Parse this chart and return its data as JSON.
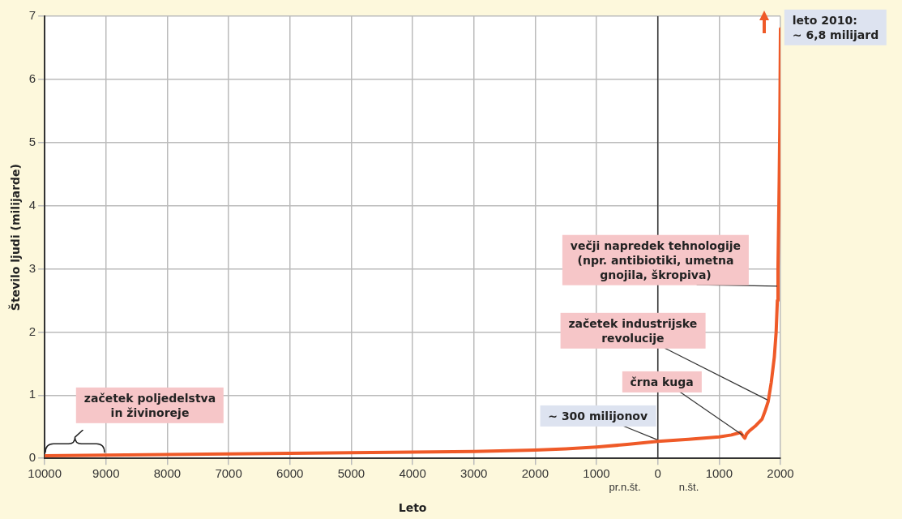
{
  "chart_data": {
    "type": "line",
    "xlabel": "Leto",
    "ylabel": "Število ljudi (milijarde)",
    "xlim": [
      -10000,
      2000
    ],
    "ylim": [
      0,
      7
    ],
    "xticks": [
      {
        "value": -10000,
        "label": "10000"
      },
      {
        "value": -9000,
        "label": "9000"
      },
      {
        "value": -8000,
        "label": "8000"
      },
      {
        "value": -7000,
        "label": "7000"
      },
      {
        "value": -6000,
        "label": "6000"
      },
      {
        "value": -5000,
        "label": "5000"
      },
      {
        "value": -4000,
        "label": "4000"
      },
      {
        "value": -3000,
        "label": "3000"
      },
      {
        "value": -2000,
        "label": "2000"
      },
      {
        "value": -1000,
        "label": "1000"
      },
      0,
      1000,
      2000
    ],
    "yticks": [
      0,
      1,
      2,
      3,
      4,
      5,
      6,
      7
    ],
    "grid": true,
    "legend": false,
    "marker": "none",
    "line_style": "solid",
    "series": [
      {
        "color": "#ef5a28",
        "x": [
          -10000,
          -9000,
          -8000,
          -7000,
          -6000,
          -5000,
          -4000,
          -3000,
          -2000,
          -1500,
          -1000,
          -500,
          0,
          500,
          1000,
          1200,
          1350,
          1400,
          1420,
          1450,
          1500,
          1600,
          1700,
          1750,
          1800,
          1850,
          1900,
          1930,
          1950,
          1960,
          1970,
          1980,
          1990,
          2000
        ],
        "values": [
          0.04,
          0.05,
          0.06,
          0.07,
          0.08,
          0.09,
          0.1,
          0.11,
          0.13,
          0.15,
          0.18,
          0.22,
          0.27,
          0.3,
          0.34,
          0.37,
          0.41,
          0.34,
          0.32,
          0.39,
          0.44,
          0.52,
          0.62,
          0.75,
          0.9,
          1.2,
          1.6,
          2.0,
          2.5,
          3.0,
          3.7,
          4.4,
          5.3,
          6.8
        ]
      }
    ],
    "ref_lines": [
      {
        "axis": "x",
        "value": 0,
        "color": "#333333"
      }
    ],
    "annotations": [
      "začetek poljedelstva\nin živinoreje",
      {
        "text": "~ 300 milijonov",
        "x": 0,
        "y": 0.27
      },
      {
        "text": "črna kuga",
        "x": 1400,
        "y": 0.34
      },
      {
        "text": "začetek industrijske\nrevolucije",
        "x": 1800,
        "y": 0.9
      },
      {
        "text": "večji napredek tehnologije\n(npr. antibiotiki, umetna\ngnojila, škropiva)",
        "x": 1960,
        "y": 2.7
      },
      {
        "text": "leto 2010:\n~ 6,8 milijard",
        "x": 2000,
        "y": 6.8
      },
      "pr.n.št.",
      "n.št."
    ]
  }
}
